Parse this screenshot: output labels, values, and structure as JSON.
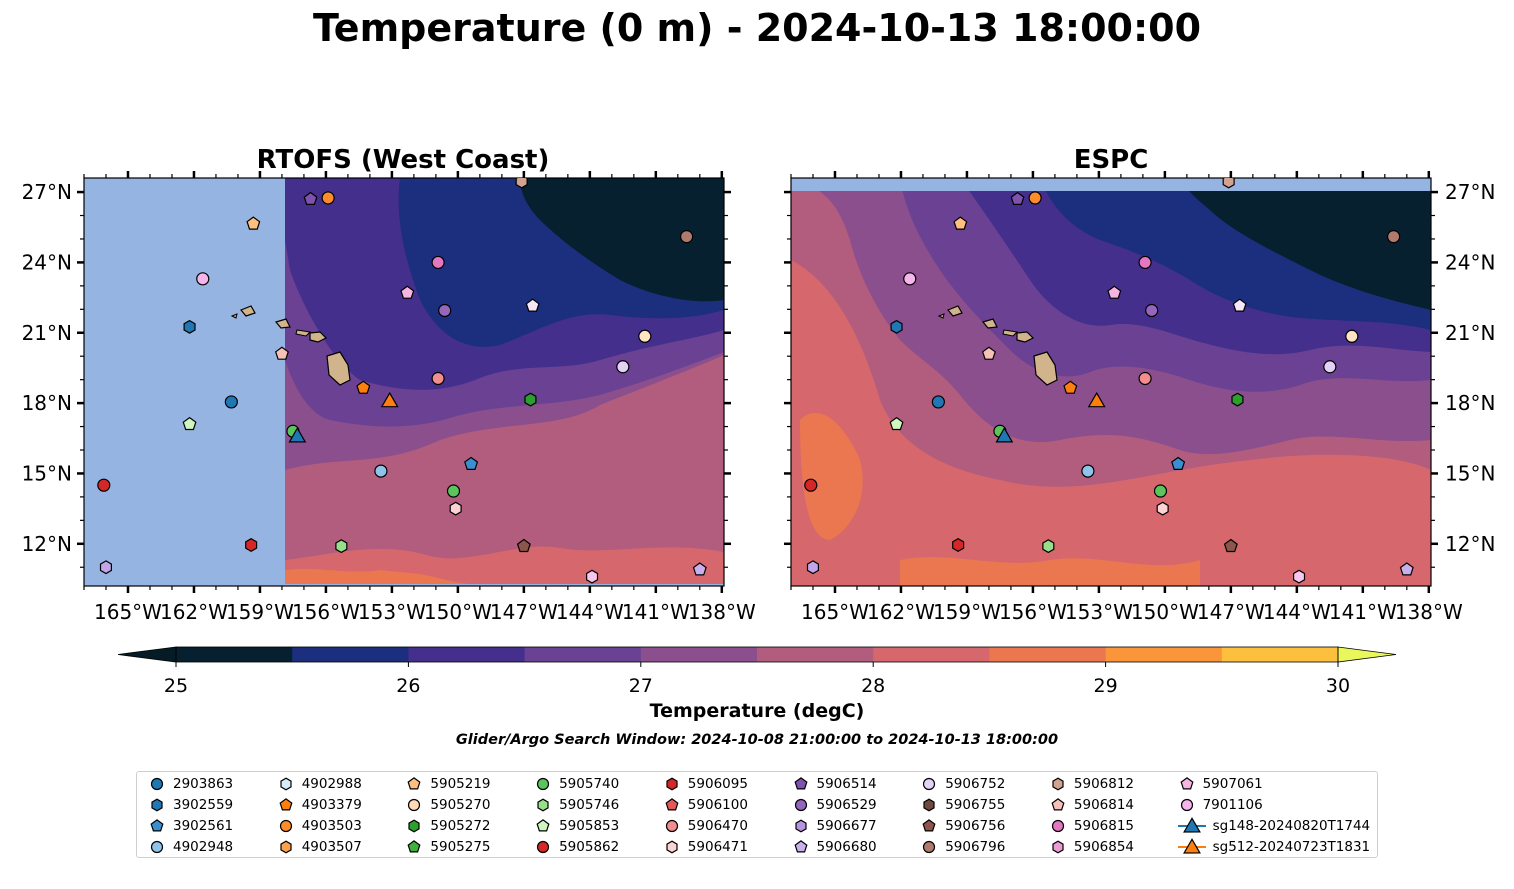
{
  "figure": {
    "title": "Temperature (0 m) - 2024-10-13 18:00:00",
    "search_window": "Glider/Argo Search Window: 2024-10-08 21:00:00 to 2024-10-13 18:00:00"
  },
  "chart_data": {
    "type": "heatmap",
    "colors": {
      "land": "#d2b48c",
      "nodata": "#96b4e1",
      "levels": [
        "#06202f",
        "#1c2f7e",
        "#442f8c",
        "#6a4193",
        "#8a4f8c",
        "#b25c7e",
        "#d6676d",
        "#eb7750",
        "#fb953a",
        "#fdc03e"
      ],
      "under": "#051c26",
      "over": "#e9f75b"
    },
    "panels": [
      {
        "title": "RTOFS (West Coast)",
        "xlim": [
          -167,
          -137.9
        ],
        "ylim": [
          10.2,
          27.6
        ],
        "domain_west_lon": -157.8,
        "domain_south_lat": 10.3
      },
      {
        "title": "ESPC",
        "xlim": [
          -167,
          -137.9
        ],
        "ylim": [
          10.2,
          27.6
        ],
        "domain_north_lat": 27.05
      }
    ],
    "x_ticks": [
      -165,
      -162,
      -159,
      -156,
      -153,
      -150,
      -147,
      -144,
      -141,
      -138
    ],
    "x_tick_labels": [
      "165°W",
      "162°W",
      "159°W",
      "156°W",
      "153°W",
      "150°W",
      "147°W",
      "144°W",
      "141°W",
      "138°W"
    ],
    "y_ticks": [
      12,
      15,
      18,
      21,
      24,
      27
    ],
    "y_tick_labels": [
      "12°N",
      "15°N",
      "18°N",
      "21°N",
      "24°N",
      "27°N"
    ],
    "colorbar": {
      "label": "Temperature (degC)",
      "levels": [
        25,
        25.5,
        26,
        26.5,
        27,
        27.5,
        28,
        28.5,
        29,
        29.5,
        30
      ],
      "ticks": [
        25,
        26,
        27,
        28,
        29,
        30
      ],
      "extend": "both"
    },
    "legend_placement": "bottom",
    "series": [
      {
        "name": "2903863",
        "marker": "circle",
        "color": "#1f77b4",
        "lon": -160.3,
        "lat": 18.05
      },
      {
        "name": "3902559",
        "marker": "hexagon",
        "color": "#1f77b4"
      },
      {
        "name": "3902561",
        "marker": "pentagon",
        "color": "#3a8fd0",
        "lon": -149.4,
        "lat": 15.4
      },
      {
        "name": "4902948",
        "marker": "circle",
        "color": "#8fc3ea",
        "lon": -153.5,
        "lat": 15.1
      },
      {
        "name": "4902988",
        "marker": "hexagon",
        "color": "#d8ebf8"
      },
      {
        "name": "4903379",
        "marker": "pentagon",
        "color": "#ff7f0e",
        "lon": -154.3,
        "lat": 18.65
      },
      {
        "name": "4903503",
        "marker": "circle",
        "color": "#ff8c2a",
        "lon": -155.9,
        "lat": 26.75
      },
      {
        "name": "4903507",
        "marker": "hexagon",
        "color": "#ffa04a"
      },
      {
        "name": "5905219",
        "marker": "pentagon",
        "color": "#ffbf80",
        "lon": -159.3,
        "lat": 25.65
      },
      {
        "name": "5905270",
        "marker": "circle",
        "color": "#ffd9b8"
      },
      {
        "name": "5905272",
        "marker": "hexagon",
        "color": "#2ca02c",
        "lon": -146.7,
        "lat": 18.15
      },
      {
        "name": "5905275",
        "marker": "pentagon",
        "color": "#3fb13f"
      },
      {
        "name": "5905740",
        "marker": "circle",
        "color": "#5cc45c",
        "lon": -150.2,
        "lat": 14.25
      },
      {
        "name": "5905746",
        "marker": "hexagon",
        "color": "#98df8a",
        "lon": -155.3,
        "lat": 11.9
      },
      {
        "name": "5905853",
        "marker": "pentagon",
        "color": "#cff5c0",
        "lon": -162.2,
        "lat": 17.1
      },
      {
        "name": "5905862",
        "marker": "circle",
        "color": "#d62728",
        "lon": -166.1,
        "lat": 14.5
      },
      {
        "name": "5906095",
        "marker": "hexagon",
        "color": "#d62728",
        "lon": -159.4,
        "lat": 11.95
      },
      {
        "name": "5906100",
        "marker": "pentagon",
        "color": "#e45a5a"
      },
      {
        "name": "5906470",
        "marker": "circle",
        "color": "#f28e8e",
        "lon": -150.9,
        "lat": 19.05
      },
      {
        "name": "5906471",
        "marker": "hexagon",
        "color": "#fcd2d2",
        "lon": -150.1,
        "lat": 13.5
      },
      {
        "name": "5906514",
        "marker": "pentagon",
        "color": "#7f52b0",
        "lon": -156.7,
        "lat": 26.7
      },
      {
        "name": "5906529",
        "marker": "circle",
        "color": "#9467bd",
        "lon": -150.6,
        "lat": 21.95
      },
      {
        "name": "5906677",
        "marker": "hexagon",
        "color": "#b596dc"
      },
      {
        "name": "5906680",
        "marker": "pentagon",
        "color": "#c9b0ec",
        "lon": -139.0,
        "lat": 10.9
      },
      {
        "name": "5906752",
        "marker": "circle",
        "color": "#e4d2f6",
        "lon": -142.5,
        "lat": 19.55
      },
      {
        "name": "5906755",
        "marker": "hexagon",
        "color": "#6f4a3f"
      },
      {
        "name": "5906756",
        "marker": "pentagon",
        "color": "#8c564b",
        "lon": -147.0,
        "lat": 11.9
      },
      {
        "name": "5906796",
        "marker": "circle",
        "color": "#b07b6e",
        "lon": -139.6,
        "lat": 25.1
      },
      {
        "name": "5906812",
        "marker": "hexagon",
        "color": "#d3a391",
        "lon": -147.1,
        "lat": 27.45
      },
      {
        "name": "5906814",
        "marker": "pentagon",
        "color": "#f6c2b8",
        "lon": -158.0,
        "lat": 20.1
      },
      {
        "name": "5906815",
        "marker": "circle",
        "color": "#e377c2",
        "lon": -150.9,
        "lat": 24.0
      },
      {
        "name": "5906854",
        "marker": "hexagon",
        "color": "#ec9bd5"
      },
      {
        "name": "5907061",
        "marker": "pentagon",
        "color": "#f7b6e2",
        "lon": -152.3,
        "lat": 22.7
      },
      {
        "name": "7901106",
        "marker": "circle",
        "color": "#f6b5ea",
        "lon": -161.6,
        "lat": 23.3
      },
      {
        "name": "sg148-20240820T1744",
        "marker": "triangle",
        "color": "#1f77b4",
        "lon": -157.3,
        "lat": 16.6
      },
      {
        "name": "sg512-20240723T1831",
        "marker": "triangle",
        "color": "#ff7f0e",
        "lon": -153.1,
        "lat": 18.1
      }
    ],
    "extra_markers": [
      {
        "marker": "hexagon",
        "color": "#1f77b4",
        "lon": -162.2,
        "lat": 21.25
      },
      {
        "marker": "pentagon",
        "color": "#f7e6f7",
        "lon": -146.6,
        "lat": 22.15
      },
      {
        "marker": "circle",
        "color": "#ffe4c4",
        "lon": -141.5,
        "lat": 20.85
      },
      {
        "marker": "hexagon",
        "color": "#f7c7f0",
        "lon": -143.9,
        "lat": 10.6
      },
      {
        "marker": "hexagon",
        "color": "#c3a6ea",
        "lon": -166.0,
        "lat": 11.0
      },
      {
        "marker": "circle",
        "color": "#5cc45c",
        "lon": -157.5,
        "lat": 16.8
      }
    ]
  }
}
